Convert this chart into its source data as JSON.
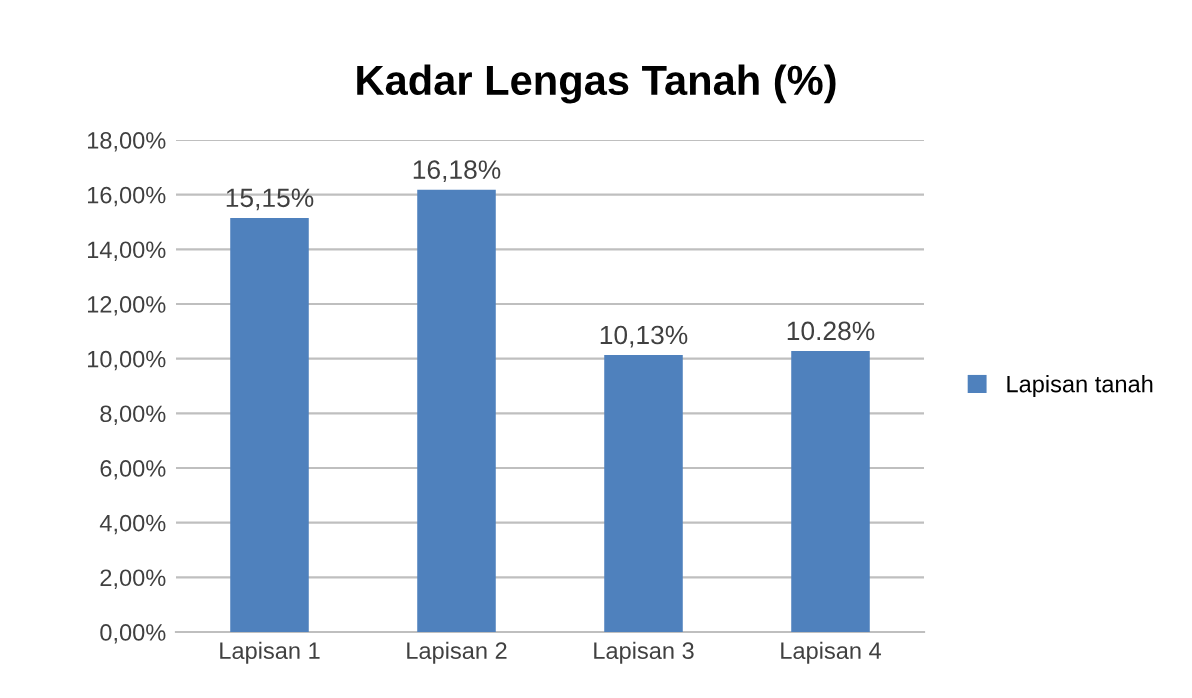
{
  "chart_data": {
    "type": "bar",
    "title": "Kadar Lengas Tanah (%)",
    "categories": [
      "Lapisan 1",
      "Lapisan 2",
      "Lapisan 3",
      "Lapisan 4"
    ],
    "series": [
      {
        "name": "Lapisan tanah",
        "color": "#4f81bd",
        "values": [
          15.15,
          16.18,
          10.13,
          10.28
        ],
        "value_labels": [
          "15,15%",
          "16,18%",
          "10,13%",
          "10.28%"
        ]
      }
    ],
    "ylim": [
      0,
      18
    ],
    "yticks": [
      {
        "value": 0,
        "label": "0,00%"
      },
      {
        "value": 2,
        "label": "2,00%"
      },
      {
        "value": 4,
        "label": "4,00%"
      },
      {
        "value": 6,
        "label": "6,00%"
      },
      {
        "value": 8,
        "label": "8,00%"
      },
      {
        "value": 10,
        "label": "10,00%"
      },
      {
        "value": 12,
        "label": "12,00%"
      },
      {
        "value": 14,
        "label": "14,00%"
      },
      {
        "value": 16,
        "label": "16,00%"
      },
      {
        "value": 18,
        "label": "18,00%"
      }
    ],
    "grid": "y",
    "legend": "right"
  }
}
